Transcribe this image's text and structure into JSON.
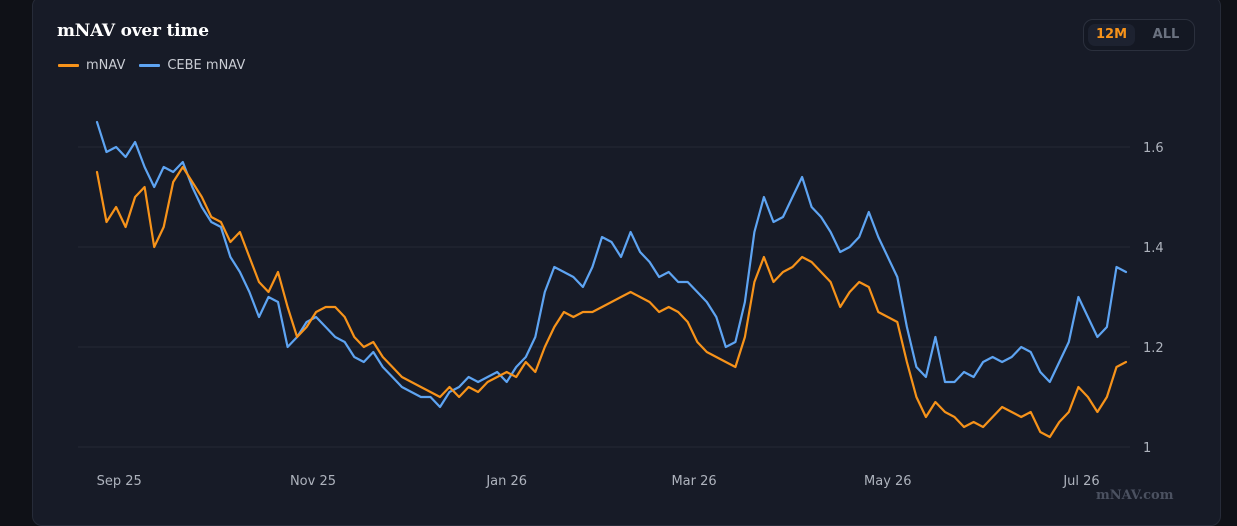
{
  "card": {
    "title": "mNAV over time",
    "watermark": "mNAV.com"
  },
  "range": {
    "active_label": "12M",
    "inactive_label": "ALL"
  },
  "colors": {
    "mnav": "#f7931a",
    "cebe": "#5ea4f2",
    "grid": "#252a36",
    "axis_text": "#aeb3bd"
  },
  "chart_data": {
    "type": "line",
    "title": "mNAV over time",
    "xlabel": "",
    "ylabel": "",
    "x_ticks": [
      "Sep 25",
      "Nov 25",
      "Jan 26",
      "Mar 26",
      "May 26",
      "Jul 26"
    ],
    "y_ticks": [
      1,
      1.2,
      1.4,
      1.6
    ],
    "ylim": [
      1,
      1.7
    ],
    "grid": true,
    "legend": "top-left",
    "series": [
      {
        "name": "mNAV",
        "points": [
          [
            "2025-08-25",
            1.55
          ],
          [
            "2025-08-28",
            1.45
          ],
          [
            "2025-08-31",
            1.48
          ],
          [
            "2025-09-03",
            1.44
          ],
          [
            "2025-09-06",
            1.5
          ],
          [
            "2025-09-09",
            1.52
          ],
          [
            "2025-09-12",
            1.4
          ],
          [
            "2025-09-15",
            1.44
          ],
          [
            "2025-09-18",
            1.53
          ],
          [
            "2025-09-21",
            1.56
          ],
          [
            "2025-09-24",
            1.53
          ],
          [
            "2025-09-27",
            1.5
          ],
          [
            "2025-09-30",
            1.46
          ],
          [
            "2025-10-03",
            1.45
          ],
          [
            "2025-10-06",
            1.41
          ],
          [
            "2025-10-09",
            1.43
          ],
          [
            "2025-10-12",
            1.38
          ],
          [
            "2025-10-15",
            1.33
          ],
          [
            "2025-10-18",
            1.31
          ],
          [
            "2025-10-21",
            1.35
          ],
          [
            "2025-10-24",
            1.28
          ],
          [
            "2025-10-27",
            1.22
          ],
          [
            "2025-10-30",
            1.24
          ],
          [
            "2025-11-02",
            1.27
          ],
          [
            "2025-11-05",
            1.28
          ],
          [
            "2025-11-08",
            1.28
          ],
          [
            "2025-11-11",
            1.26
          ],
          [
            "2025-11-14",
            1.22
          ],
          [
            "2025-11-17",
            1.2
          ],
          [
            "2025-11-20",
            1.21
          ],
          [
            "2025-11-23",
            1.18
          ],
          [
            "2025-11-26",
            1.16
          ],
          [
            "2025-11-29",
            1.14
          ],
          [
            "2025-12-02",
            1.13
          ],
          [
            "2025-12-05",
            1.12
          ],
          [
            "2025-12-08",
            1.11
          ],
          [
            "2025-12-11",
            1.1
          ],
          [
            "2025-12-14",
            1.12
          ],
          [
            "2025-12-17",
            1.1
          ],
          [
            "2025-12-20",
            1.12
          ],
          [
            "2025-12-23",
            1.11
          ],
          [
            "2025-12-26",
            1.13
          ],
          [
            "2025-12-29",
            1.14
          ],
          [
            "2026-01-01",
            1.15
          ],
          [
            "2026-01-04",
            1.14
          ],
          [
            "2026-01-07",
            1.17
          ],
          [
            "2026-01-10",
            1.15
          ],
          [
            "2026-01-13",
            1.2
          ],
          [
            "2026-01-16",
            1.24
          ],
          [
            "2026-01-19",
            1.27
          ],
          [
            "2026-01-22",
            1.26
          ],
          [
            "2026-01-25",
            1.27
          ],
          [
            "2026-01-28",
            1.27
          ],
          [
            "2026-01-31",
            1.28
          ],
          [
            "2026-02-03",
            1.29
          ],
          [
            "2026-02-06",
            1.3
          ],
          [
            "2026-02-09",
            1.31
          ],
          [
            "2026-02-12",
            1.3
          ],
          [
            "2026-02-15",
            1.29
          ],
          [
            "2026-02-18",
            1.27
          ],
          [
            "2026-02-21",
            1.28
          ],
          [
            "2026-02-24",
            1.27
          ],
          [
            "2026-02-27",
            1.25
          ],
          [
            "2026-03-02",
            1.21
          ],
          [
            "2026-03-05",
            1.19
          ],
          [
            "2026-03-08",
            1.18
          ],
          [
            "2026-03-11",
            1.17
          ],
          [
            "2026-03-14",
            1.16
          ],
          [
            "2026-03-17",
            1.22
          ],
          [
            "2026-03-20",
            1.33
          ],
          [
            "2026-03-23",
            1.38
          ],
          [
            "2026-03-26",
            1.33
          ],
          [
            "2026-03-29",
            1.35
          ],
          [
            "2026-04-01",
            1.36
          ],
          [
            "2026-04-04",
            1.38
          ],
          [
            "2026-04-07",
            1.37
          ],
          [
            "2026-04-10",
            1.35
          ],
          [
            "2026-04-13",
            1.33
          ],
          [
            "2026-04-16",
            1.28
          ],
          [
            "2026-04-19",
            1.31
          ],
          [
            "2026-04-22",
            1.33
          ],
          [
            "2026-04-25",
            1.32
          ],
          [
            "2026-04-28",
            1.27
          ],
          [
            "2026-05-01",
            1.26
          ],
          [
            "2026-05-04",
            1.25
          ],
          [
            "2026-05-07",
            1.17
          ],
          [
            "2026-05-10",
            1.1
          ],
          [
            "2026-05-13",
            1.06
          ],
          [
            "2026-05-16",
            1.09
          ],
          [
            "2026-05-19",
            1.07
          ],
          [
            "2026-05-22",
            1.06
          ],
          [
            "2026-05-25",
            1.04
          ],
          [
            "2026-05-28",
            1.05
          ],
          [
            "2026-05-31",
            1.04
          ],
          [
            "2026-06-03",
            1.06
          ],
          [
            "2026-06-06",
            1.08
          ],
          [
            "2026-06-09",
            1.07
          ],
          [
            "2026-06-12",
            1.06
          ],
          [
            "2026-06-15",
            1.07
          ],
          [
            "2026-06-18",
            1.03
          ],
          [
            "2026-06-21",
            1.02
          ],
          [
            "2026-06-24",
            1.05
          ],
          [
            "2026-06-27",
            1.07
          ],
          [
            "2026-06-30",
            1.12
          ],
          [
            "2026-07-03",
            1.1
          ],
          [
            "2026-07-06",
            1.07
          ],
          [
            "2026-07-09",
            1.1
          ],
          [
            "2026-07-12",
            1.16
          ],
          [
            "2026-07-15",
            1.17
          ]
        ]
      },
      {
        "name": "CEBE mNAV",
        "points": [
          [
            "2025-08-25",
            1.65
          ],
          [
            "2025-08-28",
            1.59
          ],
          [
            "2025-08-31",
            1.6
          ],
          [
            "2025-09-03",
            1.58
          ],
          [
            "2025-09-06",
            1.61
          ],
          [
            "2025-09-09",
            1.56
          ],
          [
            "2025-09-12",
            1.52
          ],
          [
            "2025-09-15",
            1.56
          ],
          [
            "2025-09-18",
            1.55
          ],
          [
            "2025-09-21",
            1.57
          ],
          [
            "2025-09-24",
            1.52
          ],
          [
            "2025-09-27",
            1.48
          ],
          [
            "2025-09-30",
            1.45
          ],
          [
            "2025-10-03",
            1.44
          ],
          [
            "2025-10-06",
            1.38
          ],
          [
            "2025-10-09",
            1.35
          ],
          [
            "2025-10-12",
            1.31
          ],
          [
            "2025-10-15",
            1.26
          ],
          [
            "2025-10-18",
            1.3
          ],
          [
            "2025-10-21",
            1.29
          ],
          [
            "2025-10-24",
            1.2
          ],
          [
            "2025-10-27",
            1.22
          ],
          [
            "2025-10-30",
            1.25
          ],
          [
            "2025-11-02",
            1.26
          ],
          [
            "2025-11-05",
            1.24
          ],
          [
            "2025-11-08",
            1.22
          ],
          [
            "2025-11-11",
            1.21
          ],
          [
            "2025-11-14",
            1.18
          ],
          [
            "2025-11-17",
            1.17
          ],
          [
            "2025-11-20",
            1.19
          ],
          [
            "2025-11-23",
            1.16
          ],
          [
            "2025-11-26",
            1.14
          ],
          [
            "2025-11-29",
            1.12
          ],
          [
            "2025-12-02",
            1.11
          ],
          [
            "2025-12-05",
            1.1
          ],
          [
            "2025-12-08",
            1.1
          ],
          [
            "2025-12-11",
            1.08
          ],
          [
            "2025-12-14",
            1.11
          ],
          [
            "2025-12-17",
            1.12
          ],
          [
            "2025-12-20",
            1.14
          ],
          [
            "2025-12-23",
            1.13
          ],
          [
            "2025-12-26",
            1.14
          ],
          [
            "2025-12-29",
            1.15
          ],
          [
            "2026-01-01",
            1.13
          ],
          [
            "2026-01-04",
            1.16
          ],
          [
            "2026-01-07",
            1.18
          ],
          [
            "2026-01-10",
            1.22
          ],
          [
            "2026-01-13",
            1.31
          ],
          [
            "2026-01-16",
            1.36
          ],
          [
            "2026-01-19",
            1.35
          ],
          [
            "2026-01-22",
            1.34
          ],
          [
            "2026-01-25",
            1.32
          ],
          [
            "2026-01-28",
            1.36
          ],
          [
            "2026-01-31",
            1.42
          ],
          [
            "2026-02-03",
            1.41
          ],
          [
            "2026-02-06",
            1.38
          ],
          [
            "2026-02-09",
            1.43
          ],
          [
            "2026-02-12",
            1.39
          ],
          [
            "2026-02-15",
            1.37
          ],
          [
            "2026-02-18",
            1.34
          ],
          [
            "2026-02-21",
            1.35
          ],
          [
            "2026-02-24",
            1.33
          ],
          [
            "2026-02-27",
            1.33
          ],
          [
            "2026-03-02",
            1.31
          ],
          [
            "2026-03-05",
            1.29
          ],
          [
            "2026-03-08",
            1.26
          ],
          [
            "2026-03-11",
            1.2
          ],
          [
            "2026-03-14",
            1.21
          ],
          [
            "2026-03-17",
            1.29
          ],
          [
            "2026-03-20",
            1.43
          ],
          [
            "2026-03-23",
            1.5
          ],
          [
            "2026-03-26",
            1.45
          ],
          [
            "2026-03-29",
            1.46
          ],
          [
            "2026-04-01",
            1.5
          ],
          [
            "2026-04-04",
            1.54
          ],
          [
            "2026-04-07",
            1.48
          ],
          [
            "2026-04-10",
            1.46
          ],
          [
            "2026-04-13",
            1.43
          ],
          [
            "2026-04-16",
            1.39
          ],
          [
            "2026-04-19",
            1.4
          ],
          [
            "2026-04-22",
            1.42
          ],
          [
            "2026-04-25",
            1.47
          ],
          [
            "2026-04-28",
            1.42
          ],
          [
            "2026-05-01",
            1.38
          ],
          [
            "2026-05-04",
            1.34
          ],
          [
            "2026-05-07",
            1.24
          ],
          [
            "2026-05-10",
            1.16
          ],
          [
            "2026-05-13",
            1.14
          ],
          [
            "2026-05-16",
            1.22
          ],
          [
            "2026-05-19",
            1.13
          ],
          [
            "2026-05-22",
            1.13
          ],
          [
            "2026-05-25",
            1.15
          ],
          [
            "2026-05-28",
            1.14
          ],
          [
            "2026-05-31",
            1.17
          ],
          [
            "2026-06-03",
            1.18
          ],
          [
            "2026-06-06",
            1.17
          ],
          [
            "2026-06-09",
            1.18
          ],
          [
            "2026-06-12",
            1.2
          ],
          [
            "2026-06-15",
            1.19
          ],
          [
            "2026-06-18",
            1.15
          ],
          [
            "2026-06-21",
            1.13
          ],
          [
            "2026-06-24",
            1.17
          ],
          [
            "2026-06-27",
            1.21
          ],
          [
            "2026-06-30",
            1.3
          ],
          [
            "2026-07-03",
            1.26
          ],
          [
            "2026-07-06",
            1.22
          ],
          [
            "2026-07-09",
            1.24
          ],
          [
            "2026-07-12",
            1.36
          ],
          [
            "2026-07-15",
            1.35
          ]
        ]
      }
    ]
  }
}
